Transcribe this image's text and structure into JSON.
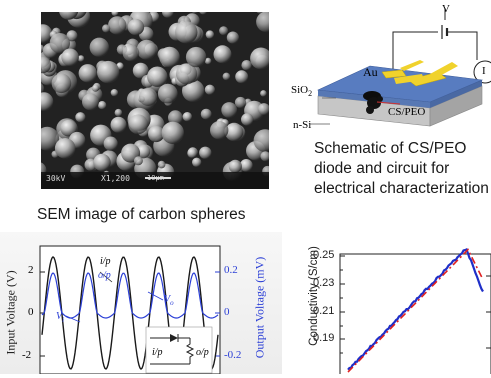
{
  "sem": {
    "overlay": {
      "voltage": "30kV",
      "mag": "X1,200",
      "scale": "10μm"
    },
    "caption": "SEM image of carbon spheres"
  },
  "schematic": {
    "labels": {
      "v": "V",
      "au": "Au",
      "sio2": "SiO",
      "sio2_sub": "2",
      "nsi": "n-Si",
      "cs_peo": "CS/PEO",
      "meter": "I"
    },
    "caption_lines": [
      "Schematic of CS/PEO",
      "diode  and  circuit for",
      "electrical characterization"
    ]
  },
  "iv_plot": {
    "ylabel_left": "Input Voltage (V)",
    "ylabel_right": "Output Voltage (mV)",
    "left_ticks": [
      "2",
      "0",
      "-2"
    ],
    "right_ticks": [
      "0.2",
      "0",
      "-0.2"
    ],
    "annotations": {
      "ip_top": "i/p",
      "op_top": "o/p",
      "vo": "V",
      "vo_sub": "o",
      "vi": "V",
      "vi_sub": "i",
      "ip_inset": "i/p",
      "op_inset": "o/p"
    },
    "colors": {
      "input": "#1a1a1a",
      "output": "#2b3fd6"
    }
  },
  "conductivity_plot": {
    "ylabel": "Conductivity (S/cm)",
    "yticks": [
      "0.25",
      "0.23",
      "0.21",
      "0.19"
    ],
    "colors": {
      "data": "#1f2fc8",
      "fit": "#e02020"
    }
  },
  "chart_data": [
    {
      "type": "line",
      "ylabel": "Input Voltage (V)",
      "y2label": "Output Voltage (mV)",
      "ylim": [
        -3,
        3
      ],
      "y2lim": [
        -0.3,
        0.3
      ],
      "series": []
    },
    {
      "type": "line",
      "ylabel": "Conductivity (S/cm)",
      "ylim": [
        0.175,
        0.25
      ],
      "series": []
    }
  ]
}
